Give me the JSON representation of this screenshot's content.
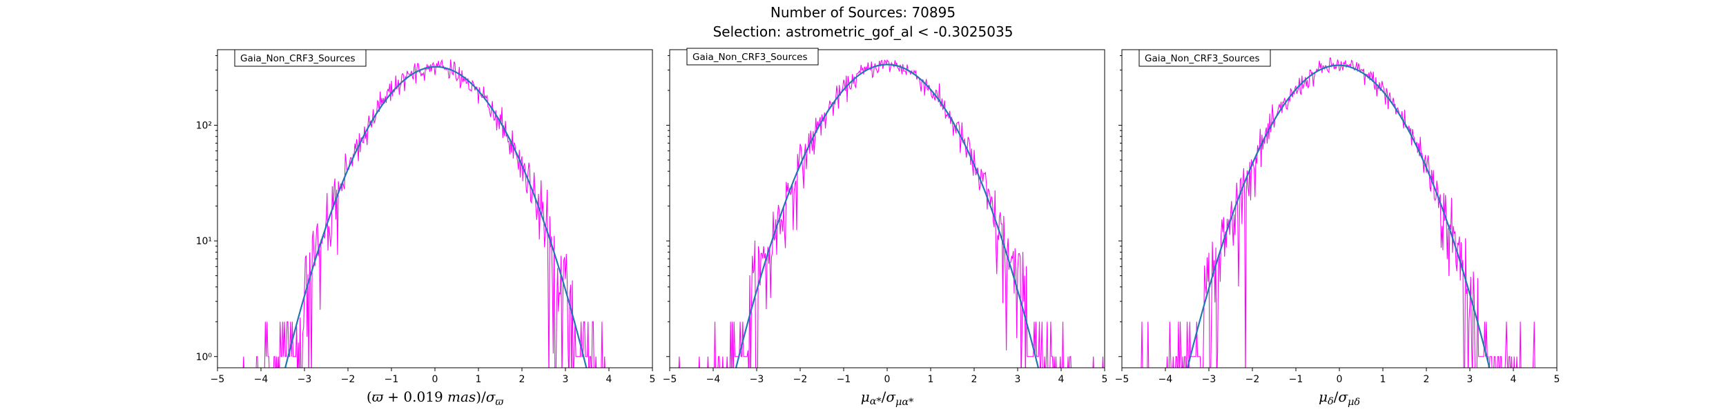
{
  "figure": {
    "title_line1": "Number of Sources: 70895",
    "title_line2": "Selection: astrometric_gof_al < -0.3025035"
  },
  "colors": {
    "histogram": "#ff00ff",
    "fit": "#1f77b4",
    "axes": "#000000"
  },
  "chart_data": [
    {
      "type": "line",
      "legend_label": "Gaia_Non_CRF3_Sources",
      "legend_position": "upper-left",
      "xlabel": "(ϖ + 0.019 mas)/σϖ",
      "ylabel": "",
      "xlim": [
        -5,
        5
      ],
      "ylim": [
        0.8,
        450
      ],
      "yscale": "log",
      "x_ticks": [
        -5,
        -4,
        -3,
        -2,
        -1,
        0,
        1,
        2,
        3,
        4,
        5
      ],
      "y_ticks": [
        {
          "value": 1,
          "label": "10⁰"
        },
        {
          "value": 10,
          "label": "10¹"
        },
        {
          "value": 100,
          "label": "10²"
        }
      ],
      "histogram": {
        "peak": 320,
        "mean": 0.0,
        "sigma": 1.0,
        "bin_width": 0.02,
        "x_min": -4.6,
        "x_max": 4.6
      },
      "series": [
        {
          "mean": 0.02,
          "sigma": 1.0,
          "peak": 320,
          "x_range": [
            -3.7,
            3.7
          ]
        }
      ]
    },
    {
      "type": "line",
      "legend_label": "Gaia_Non_CRF3_Sources",
      "legend_position": "upper-left",
      "xlabel": "μα*/σμα*",
      "ylabel": "",
      "xlim": [
        -5,
        5
      ],
      "ylim": [
        0.8,
        450
      ],
      "yscale": "log",
      "x_ticks": [
        -5,
        -4,
        -3,
        -2,
        -1,
        0,
        1,
        2,
        3,
        4,
        5
      ],
      "y_ticks": [
        {
          "value": 1,
          "label": ""
        },
        {
          "value": 10,
          "label": ""
        },
        {
          "value": 100,
          "label": ""
        }
      ],
      "histogram": {
        "peak": 335,
        "mean": 0.0,
        "sigma": 1.0,
        "bin_width": 0.02,
        "x_min": -4.9,
        "x_max": 5.0
      },
      "series": [
        {
          "mean": 0.0,
          "sigma": 1.0,
          "peak": 335,
          "x_range": [
            -3.7,
            3.7
          ]
        }
      ]
    },
    {
      "type": "line",
      "legend_label": "Gaia_Non_CRF3_Sources",
      "legend_position": "upper-left",
      "xlabel": "μδ/σμδ",
      "ylabel": "",
      "xlim": [
        -5,
        5
      ],
      "ylim": [
        0.8,
        450
      ],
      "yscale": "log",
      "x_ticks": [
        -5,
        -4,
        -3,
        -2,
        -1,
        0,
        1,
        2,
        3,
        4,
        5
      ],
      "y_ticks": [
        {
          "value": 1,
          "label": ""
        },
        {
          "value": 10,
          "label": ""
        },
        {
          "value": 100,
          "label": ""
        }
      ],
      "histogram": {
        "peak": 330,
        "mean": 0.0,
        "sigma": 1.0,
        "bin_width": 0.02,
        "x_min": -4.9,
        "x_max": 5.0
      },
      "series": [
        {
          "mean": -0.02,
          "sigma": 1.0,
          "peak": 330,
          "x_range": [
            -3.7,
            3.7
          ]
        }
      ]
    }
  ]
}
